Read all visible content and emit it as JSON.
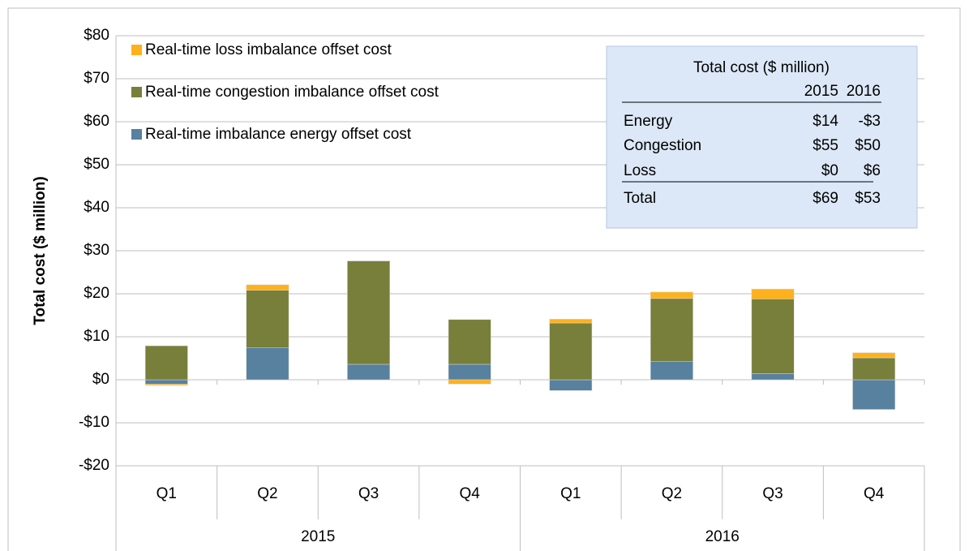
{
  "chart_data": {
    "type": "stacked-bar",
    "y_axis_label": "Total cost ($ million)",
    "categories": [
      "Q1",
      "Q2",
      "Q3",
      "Q4",
      "Q1",
      "Q2",
      "Q3",
      "Q4"
    ],
    "category_groups": [
      "2015",
      "2016"
    ],
    "series": [
      {
        "name": "Real-time imbalance energy offset cost",
        "color": "#58809f",
        "values": [
          -1.0,
          7.5,
          3.6,
          3.6,
          -2.5,
          4.3,
          1.4,
          -6.9
        ]
      },
      {
        "name": "Real-time congestion imbalance offset cost",
        "color": "#777f3a",
        "values": [
          7.9,
          13.3,
          24.0,
          10.4,
          13.2,
          14.6,
          17.4,
          5.1
        ]
      },
      {
        "name": "Real-time loss imbalance offset cost",
        "color": "#ffb11c",
        "values": [
          -0.3,
          1.3,
          0.1,
          -1.0,
          0.9,
          1.5,
          2.3,
          1.2
        ]
      }
    ],
    "ylim": [
      -20,
      80
    ],
    "yticks": [
      {
        "value": -20,
        "label": "-$20"
      },
      {
        "value": -10,
        "label": "-$10"
      },
      {
        "value": 0,
        "label": "$0"
      },
      {
        "value": 10,
        "label": "$10"
      },
      {
        "value": 20,
        "label": "$20"
      },
      {
        "value": 30,
        "label": "$30"
      },
      {
        "value": 40,
        "label": "$40"
      },
      {
        "value": 50,
        "label": "$50"
      },
      {
        "value": 60,
        "label": "$60"
      },
      {
        "value": 70,
        "label": "$70"
      },
      {
        "value": 80,
        "label": "$80"
      }
    ],
    "grid": true,
    "table": {
      "title": "Total cost ($ million)",
      "columns": [
        "2015",
        "2016"
      ],
      "rows": [
        [
          "Energy",
          "$14",
          "-$3"
        ],
        [
          "Congestion",
          "$55",
          "$50"
        ],
        [
          "Loss",
          "$0",
          "$6"
        ],
        [
          "Total",
          "$69",
          "$53"
        ]
      ]
    }
  }
}
